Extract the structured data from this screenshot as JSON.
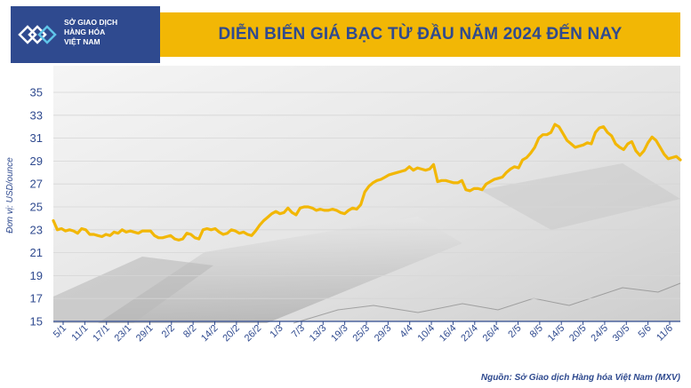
{
  "header": {
    "logo_lines": [
      "SỞ GIAO DỊCH",
      "HÀNG HÓA",
      "VIỆT NAM"
    ],
    "title": "DIỄN BIẾN GIÁ BẠC TỪ ĐẦU NĂM 2024 ĐẾN NAY"
  },
  "colors": {
    "brand_blue": "#2f4a8f",
    "title_band": "#f2b705",
    "series_line": "#f2b705"
  },
  "chart_data": {
    "type": "line",
    "title": "DIỄN BIẾN GIÁ BẠC TỪ ĐẦU NĂM 2024 ĐẾN NAY",
    "ylabel": "Đơn vị: USD/ounce",
    "xlabel": "",
    "ylim": [
      15,
      35
    ],
    "yticks": [
      15,
      17,
      19,
      21,
      23,
      25,
      27,
      29,
      31,
      33,
      35
    ],
    "grid": true,
    "xtick_labels": [
      "5/1",
      "11/1",
      "17/1",
      "23/1",
      "29/1",
      "2/2",
      "8/2",
      "14/2",
      "20/2",
      "26/2",
      "1/3",
      "7/3",
      "13/3",
      "19/3",
      "25/3",
      "29/3",
      "4/4",
      "10/4",
      "16/4",
      "22/4",
      "26/4",
      "2/5",
      "8/5",
      "14/5",
      "20/5",
      "24/5",
      "30/5",
      "5/6",
      "11/6"
    ],
    "values": [
      23.8,
      23.0,
      23.1,
      22.9,
      23.0,
      22.9,
      22.7,
      23.1,
      23.0,
      22.6,
      22.6,
      22.5,
      22.4,
      22.6,
      22.5,
      22.8,
      22.7,
      23.0,
      22.8,
      22.9,
      22.8,
      22.7,
      22.9,
      22.9,
      22.9,
      22.5,
      22.3,
      22.3,
      22.4,
      22.5,
      22.2,
      22.1,
      22.2,
      22.7,
      22.6,
      22.3,
      22.2,
      23.0,
      23.1,
      23.0,
      23.1,
      22.8,
      22.6,
      22.7,
      23.0,
      22.9,
      22.7,
      22.8,
      22.6,
      22.5,
      22.9,
      23.4,
      23.8,
      24.1,
      24.4,
      24.6,
      24.4,
      24.5,
      24.9,
      24.5,
      24.3,
      24.9,
      25.0,
      25.0,
      24.9,
      24.7,
      24.8,
      24.7,
      24.7,
      24.8,
      24.7,
      24.5,
      24.4,
      24.7,
      24.9,
      24.8,
      25.2,
      26.3,
      26.8,
      27.1,
      27.3,
      27.4,
      27.6,
      27.8,
      27.9,
      28.0,
      28.1,
      28.2,
      28.5,
      28.2,
      28.4,
      28.3,
      28.2,
      28.3,
      28.7,
      27.2,
      27.3,
      27.3,
      27.2,
      27.1,
      27.1,
      27.3,
      26.5,
      26.4,
      26.6,
      26.6,
      26.5,
      27.0,
      27.2,
      27.4,
      27.5,
      27.6,
      28.0,
      28.3,
      28.5,
      28.4,
      29.1,
      29.3,
      29.7,
      30.2,
      31.0,
      31.3,
      31.3,
      31.5,
      32.2,
      32.0,
      31.4,
      30.8,
      30.5,
      30.2,
      30.3,
      30.4,
      30.6,
      30.5,
      31.5,
      31.9,
      32.0,
      31.5,
      31.2,
      30.5,
      30.2,
      30.0,
      30.5,
      30.7,
      29.9,
      29.5,
      29.9,
      30.6,
      31.1,
      30.8,
      30.2,
      29.6,
      29.2,
      29.3,
      29.4,
      29.1
    ]
  },
  "source_note": "Nguồn: Sở Giao dịch Hàng hóa Việt Nam (MXV)"
}
